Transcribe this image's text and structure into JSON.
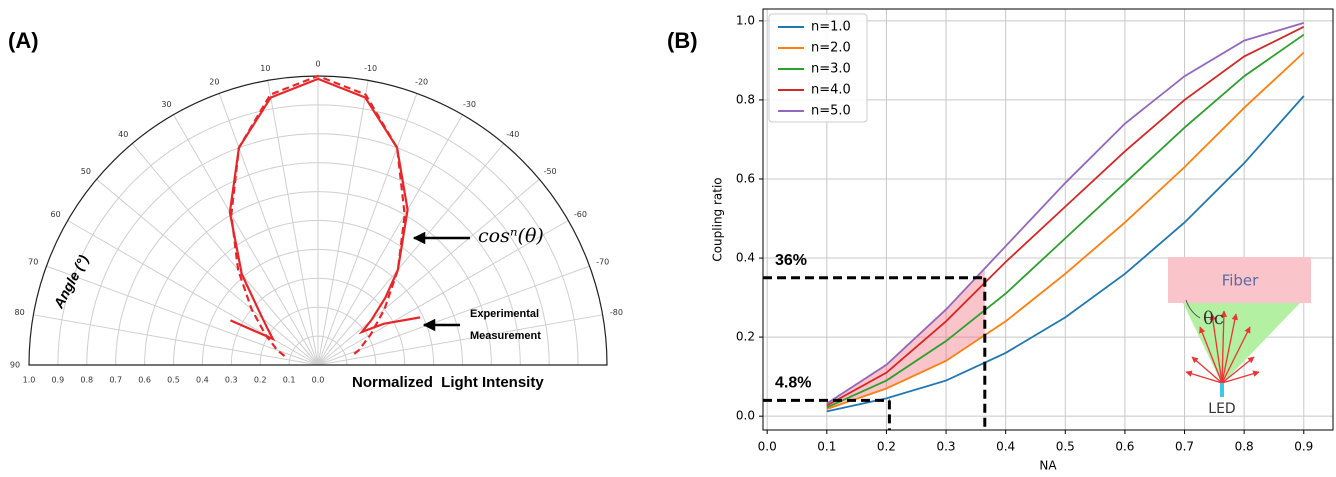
{
  "chart_data": [
    {
      "type": "polar",
      "panel_label": "(A)",
      "theta_label": "Angle (°)",
      "r_label": "Normalized  Light Intensity",
      "thetaticks": [
        90,
        80,
        70,
        60,
        50,
        40,
        30,
        20,
        10,
        0,
        -10,
        -20,
        -30,
        -40,
        -50,
        -60,
        -70,
        -80
      ],
      "rlim": [
        0,
        1
      ],
      "rticks": [
        {
          "value": 1,
          "label": "1.0"
        },
        {
          "value": 0.9,
          "label": "0.9"
        },
        {
          "value": 0.8,
          "label": "0.8"
        },
        {
          "value": 0.7,
          "label": "0.7"
        },
        {
          "value": 0.6,
          "label": "0.6"
        },
        {
          "value": 0.5,
          "label": "0.5"
        },
        {
          "value": 0.4,
          "label": "0.4"
        },
        {
          "value": 0.3,
          "label": "0.3"
        },
        {
          "value": 0.2,
          "label": "0.2"
        },
        {
          "value": 0.1,
          "label": "0.1"
        },
        {
          "value": 0,
          "label": "0.0"
        }
      ],
      "grid": true,
      "series": [
        {
          "style": "dashed",
          "color": "#e8262a",
          "theta": [
            75,
            70,
            60,
            50,
            40,
            30,
            20,
            10,
            0,
            -10,
            -20,
            -30,
            -40,
            -50,
            -60,
            -70,
            -75
          ],
          "r": [
            0.12,
            0.15,
            0.21,
            0.3,
            0.43,
            0.6,
            0.8,
            0.95,
            1.0,
            0.95,
            0.8,
            0.6,
            0.43,
            0.3,
            0.21,
            0.15,
            0.12
          ]
        },
        {
          "style": "solid",
          "color": "#e8262a",
          "theta": [
            63,
            60,
            55,
            50,
            45,
            40,
            30,
            20,
            10,
            0,
            -10,
            -20,
            -30,
            -40,
            -45,
            -50,
            -53,
            -58,
            -65
          ],
          "r": [
            0.34,
            0.18,
            0.21,
            0.25,
            0.31,
            0.41,
            0.61,
            0.8,
            0.94,
            0.99,
            0.94,
            0.8,
            0.62,
            0.43,
            0.33,
            0.24,
            0.19,
            0.27,
            0.39
          ]
        }
      ],
      "annotations": [
        "cosⁿ(θ)",
        "Experimental",
        "Measurement"
      ]
    },
    {
      "type": "line",
      "panel_label": "(B)",
      "x_label": "NA",
      "y_label": "Coupling ratio",
      "x": [
        0.1,
        0.2,
        0.3,
        0.4,
        0.5,
        0.6,
        0.7,
        0.8,
        0.9
      ],
      "series": [
        {
          "name": "n=1.0",
          "color": "#1f77b4",
          "values": [
            0.012,
            0.045,
            0.09,
            0.16,
            0.25,
            0.36,
            0.49,
            0.64,
            0.81
          ]
        },
        {
          "name": "n=2.0",
          "color": "#ff7f0e",
          "values": [
            0.018,
            0.07,
            0.14,
            0.24,
            0.36,
            0.49,
            0.63,
            0.78,
            0.92
          ]
        },
        {
          "name": "n=3.0",
          "color": "#2ca02c",
          "values": [
            0.022,
            0.09,
            0.19,
            0.31,
            0.45,
            0.59,
            0.73,
            0.86,
            0.965
          ]
        },
        {
          "name": "n=4.0",
          "color": "#d62728",
          "values": [
            0.027,
            0.11,
            0.24,
            0.39,
            0.53,
            0.67,
            0.8,
            0.91,
            0.985
          ]
        },
        {
          "name": "n=5.0",
          "color": "#9467bd",
          "values": [
            0.032,
            0.13,
            0.27,
            0.43,
            0.59,
            0.74,
            0.86,
            0.95,
            0.995
          ]
        }
      ],
      "xlim": [
        -0.007,
        0.949
      ],
      "ylim": [
        -0.035,
        1.03
      ],
      "xticks": [
        {
          "value": 0,
          "label": "0.0"
        },
        {
          "value": 0.1,
          "label": "0.1"
        },
        {
          "value": 0.2,
          "label": "0.2"
        },
        {
          "value": 0.3,
          "label": "0.3"
        },
        {
          "value": 0.4,
          "label": "0.4"
        },
        {
          "value": 0.5,
          "label": "0.5"
        },
        {
          "value": 0.6,
          "label": "0.6"
        },
        {
          "value": 0.7,
          "label": "0.7"
        },
        {
          "value": 0.8,
          "label": "0.8"
        },
        {
          "value": 0.9,
          "label": "0.9"
        }
      ],
      "yticks": [
        {
          "value": 0,
          "label": "0.0"
        },
        {
          "value": 0.2,
          "label": "0.2"
        },
        {
          "value": 0.4,
          "label": "0.4"
        },
        {
          "value": 0.6,
          "label": "0.6"
        },
        {
          "value": 0.8,
          "label": "0.8"
        },
        {
          "value": 1,
          "label": "1.0"
        }
      ],
      "grid": true,
      "legend": "upper left",
      "guides": [
        {
          "label": "36%",
          "x": 0.365,
          "y": 0.35
        },
        {
          "label": "4.8%",
          "x": 0.205,
          "y": 0.04
        }
      ],
      "inset": {
        "fiber": "Fiber",
        "angle": "θc",
        "source": "LED"
      }
    }
  ]
}
